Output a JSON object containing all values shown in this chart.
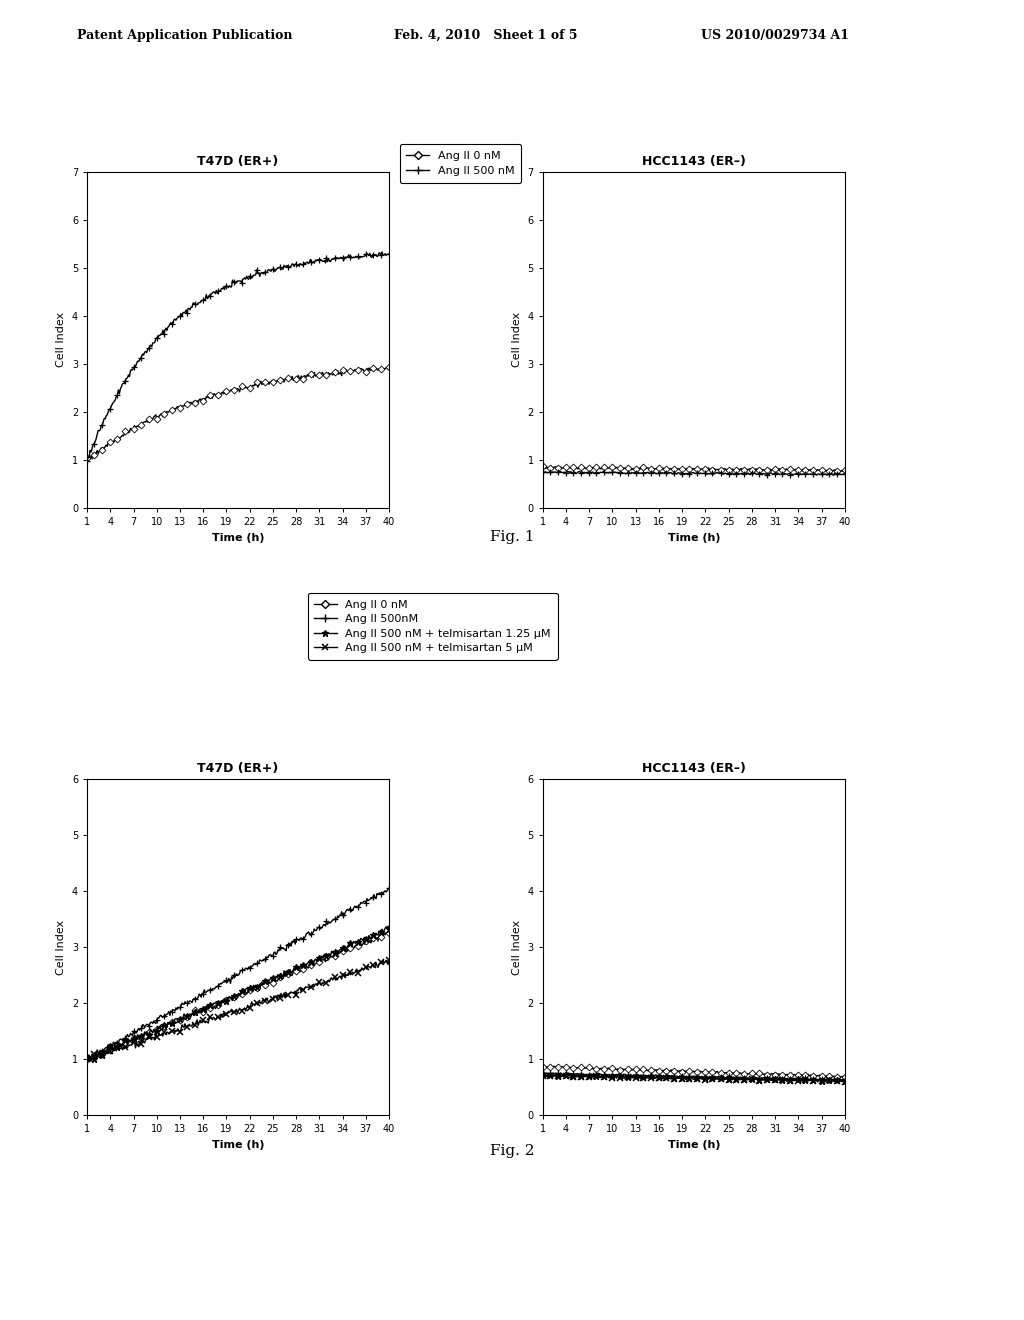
{
  "header_left": "Patent Application Publication",
  "header_mid": "Feb. 4, 2010   Sheet 1 of 5",
  "header_right": "US 2010/0029734 A1",
  "fig1_title_left": "T47D (ER+)",
  "fig1_title_right": "HCC1143 (ER–)",
  "fig1_legend": [
    "Ang II 0 nM",
    "Ang II 500 nM"
  ],
  "fig1_ylabel": "Cell Index",
  "fig1_xlabel": "Time (h)",
  "fig1_xticks": [
    1,
    4,
    7,
    10,
    13,
    16,
    19,
    22,
    25,
    28,
    31,
    34,
    37,
    40
  ],
  "fig1_ylim": [
    0,
    7
  ],
  "fig1_yticks": [
    0,
    1,
    2,
    3,
    4,
    5,
    6,
    7
  ],
  "fig2_title_left": "T47D (ER+)",
  "fig2_title_right": "HCC1143 (ER–)",
  "fig2_legend": [
    "Ang II 0 nM",
    "Ang II 500nM",
    "Ang II 500 nM + telmisartan 1.25 μM",
    "Ang II 500 nM + telmisartan 5 μM"
  ],
  "fig2_ylabel": "Cell Index",
  "fig2_xlabel": "Time (h)",
  "fig2_xticks": [
    1,
    4,
    7,
    10,
    13,
    16,
    19,
    22,
    25,
    28,
    31,
    34,
    37,
    40
  ],
  "fig2_ylim": [
    0,
    6
  ],
  "fig2_yticks": [
    0,
    1,
    2,
    3,
    4,
    5,
    6
  ],
  "fig_caption1": "Fig. 1",
  "fig_caption2": "Fig. 2"
}
